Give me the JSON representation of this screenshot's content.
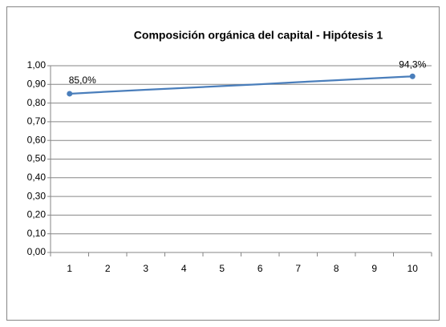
{
  "chart_data": {
    "type": "line",
    "title": "Composición orgánica del capital - Hipótesis 1",
    "categories": [
      "1",
      "2",
      "3",
      "4",
      "5",
      "6",
      "7",
      "8",
      "9",
      "10"
    ],
    "series": [
      {
        "name": "Composición orgánica",
        "color": "#4a7ebb",
        "values": [
          0.85,
          0.861,
          0.871,
          0.881,
          0.891,
          0.901,
          0.912,
          0.922,
          0.933,
          0.943
        ],
        "value_labels": [
          "85,0%",
          null,
          null,
          null,
          null,
          null,
          null,
          null,
          null,
          "94,3%"
        ]
      }
    ],
    "ylim": [
      0,
      1
    ],
    "yticks": [
      {
        "value": 0,
        "label": "0,00"
      },
      {
        "value": 0.1,
        "label": "0,10"
      },
      {
        "value": 0.2,
        "label": "0,20"
      },
      {
        "value": 0.3,
        "label": "0,30"
      },
      {
        "value": 0.4,
        "label": "0,40"
      },
      {
        "value": 0.5,
        "label": "0,50"
      },
      {
        "value": 0.6,
        "label": "0,60"
      },
      {
        "value": 0.7,
        "label": "0,70"
      },
      {
        "value": 0.8,
        "label": "0,80"
      },
      {
        "value": 0.9,
        "label": "0,90"
      },
      {
        "value": 1,
        "label": "1,00"
      }
    ],
    "grid": true
  }
}
